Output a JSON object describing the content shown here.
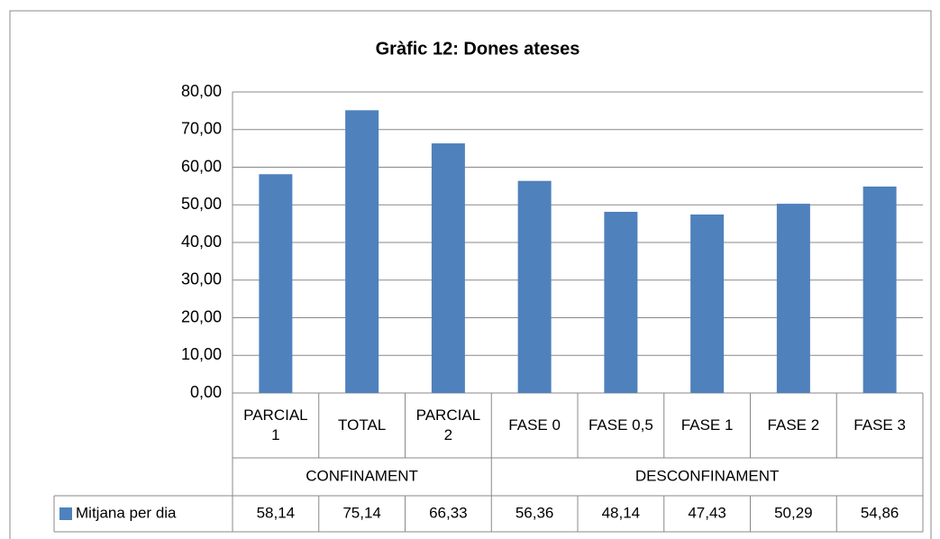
{
  "chart_data": {
    "type": "bar",
    "title": "Gràfic 12: Dones ateses",
    "categories": [
      "PARCIAL 1",
      "TOTAL",
      "PARCIAL 2",
      "FASE 0",
      "FASE 0,5",
      "FASE 1",
      "FASE 2",
      "FASE 3"
    ],
    "groups": [
      {
        "name": "CONFINAMENT",
        "count": 3
      },
      {
        "name": "DESCONFINAMENT",
        "count": 5
      }
    ],
    "series": [
      {
        "name": "Mitjana per dia",
        "color": "#4f81bd",
        "values": [
          58.14,
          75.14,
          66.33,
          56.36,
          48.14,
          47.43,
          50.29,
          54.86
        ],
        "value_labels": [
          "58,14",
          "75,14",
          "66,33",
          "56,36",
          "48,14",
          "47,43",
          "50,29",
          "54,86"
        ]
      }
    ],
    "ylim": [
      0,
      80
    ],
    "yticks": [
      {
        "value": 0,
        "label": "0,00"
      },
      {
        "value": 10,
        "label": "10,00"
      },
      {
        "value": 20,
        "label": "20,00"
      },
      {
        "value": 30,
        "label": "30,00"
      },
      {
        "value": 40,
        "label": "40,00"
      },
      {
        "value": 50,
        "label": "50,00"
      },
      {
        "value": 60,
        "label": "60,00"
      },
      {
        "value": 70,
        "label": "70,00"
      },
      {
        "value": 80,
        "label": "80,00"
      }
    ],
    "grid": true
  }
}
